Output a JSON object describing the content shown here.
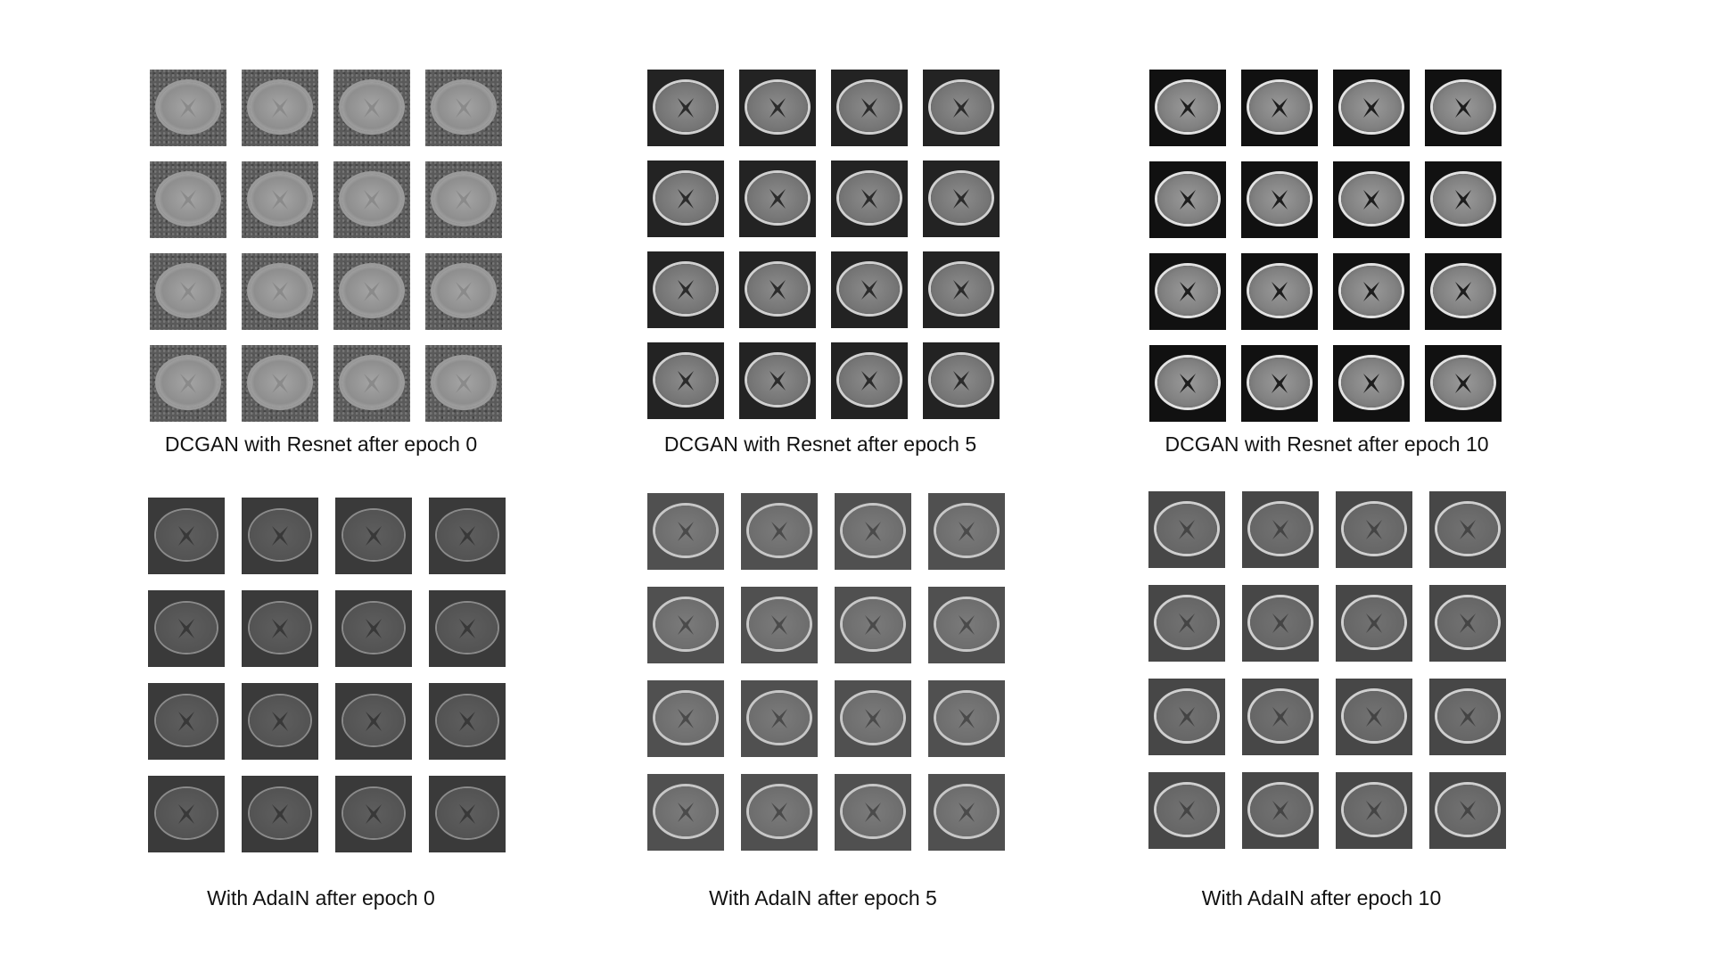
{
  "panels": [
    {
      "caption": "DCGAN with Resnet after epoch 0",
      "style": "s-r0"
    },
    {
      "caption": "DCGAN with Resnet after epoch 5",
      "style": "s-r5"
    },
    {
      "caption": "DCGAN with Resnet after epoch 10",
      "style": "s-r10"
    },
    {
      "caption": "With AdaIN after epoch 0",
      "style": "s-a0"
    },
    {
      "caption": "With AdaIN after epoch 5",
      "style": "s-a5"
    },
    {
      "caption": "With AdaIN after epoch 10",
      "style": "s-a10"
    }
  ],
  "grid": {
    "rows": 4,
    "cols": 4
  }
}
